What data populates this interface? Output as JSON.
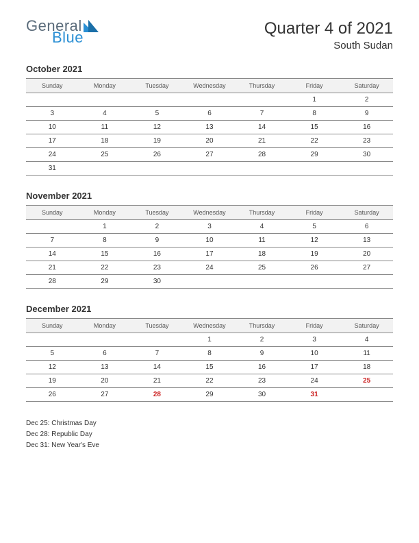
{
  "logo": {
    "general": "General",
    "blue": "Blue",
    "tri_color": "#2a8fd4",
    "general_color": "#5a6b7a"
  },
  "header": {
    "title": "Quarter 4 of 2021",
    "subtitle": "South Sudan"
  },
  "weekdays": [
    "Sunday",
    "Monday",
    "Tuesday",
    "Wednesday",
    "Thursday",
    "Friday",
    "Saturday"
  ],
  "months": [
    {
      "title": "October 2021",
      "weeks": [
        [
          "",
          "",
          "",
          "",
          "",
          "1",
          "2"
        ],
        [
          "3",
          "4",
          "5",
          "6",
          "7",
          "8",
          "9"
        ],
        [
          "10",
          "11",
          "12",
          "13",
          "14",
          "15",
          "16"
        ],
        [
          "17",
          "18",
          "19",
          "20",
          "21",
          "22",
          "23"
        ],
        [
          "24",
          "25",
          "26",
          "27",
          "28",
          "29",
          "30"
        ],
        [
          "31",
          "",
          "",
          "",
          "",
          "",
          ""
        ]
      ],
      "holidays": []
    },
    {
      "title": "November 2021",
      "weeks": [
        [
          "",
          "1",
          "2",
          "3",
          "4",
          "5",
          "6"
        ],
        [
          "7",
          "8",
          "9",
          "10",
          "11",
          "12",
          "13"
        ],
        [
          "14",
          "15",
          "16",
          "17",
          "18",
          "19",
          "20"
        ],
        [
          "21",
          "22",
          "23",
          "24",
          "25",
          "26",
          "27"
        ],
        [
          "28",
          "29",
          "30",
          "",
          "",
          "",
          ""
        ]
      ],
      "holidays": []
    },
    {
      "title": "December 2021",
      "weeks": [
        [
          "",
          "",
          "",
          "1",
          "2",
          "3",
          "4"
        ],
        [
          "5",
          "6",
          "7",
          "8",
          "9",
          "10",
          "11"
        ],
        [
          "12",
          "13",
          "14",
          "15",
          "16",
          "17",
          "18"
        ],
        [
          "19",
          "20",
          "21",
          "22",
          "23",
          "24",
          "25"
        ],
        [
          "26",
          "27",
          "28",
          "29",
          "30",
          "31",
          ""
        ]
      ],
      "holidays": [
        "25",
        "28",
        "31"
      ]
    }
  ],
  "holiday_list": [
    "Dec 25: Christmas Day",
    "Dec 28: Republic Day",
    "Dec 31: New Year's Eve"
  ],
  "colors": {
    "background": "#ffffff",
    "text": "#333333",
    "header_bg": "#f2f2f2",
    "border": "#888888",
    "holiday": "#cc2222"
  }
}
